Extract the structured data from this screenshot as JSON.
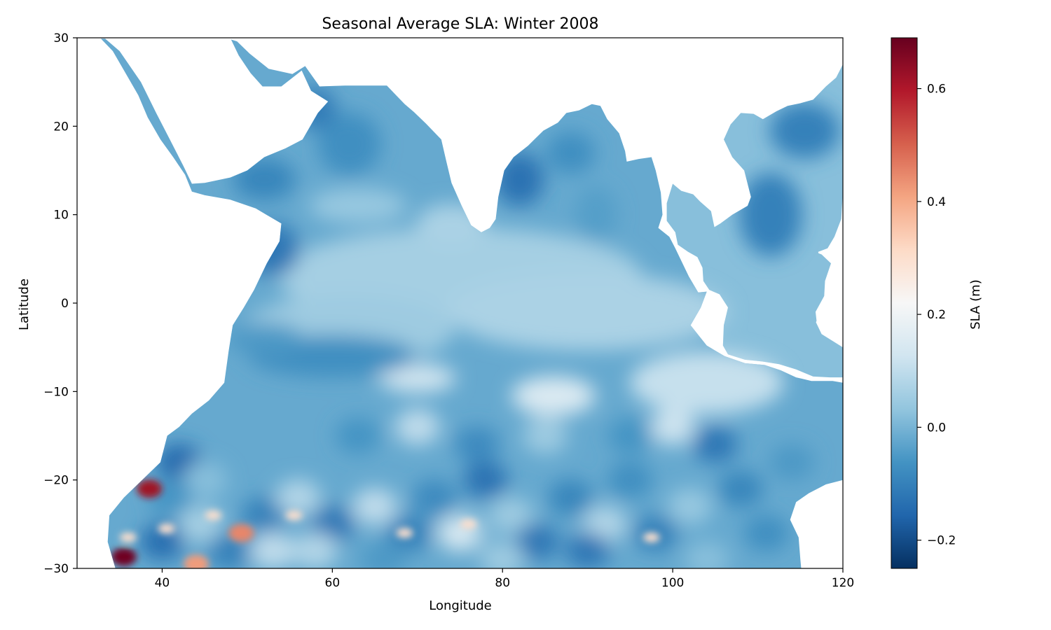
{
  "chart_data": {
    "type": "heatmap",
    "title": "Seasonal Average SLA: Winter 2008",
    "xlabel": "Longitude",
    "ylabel": "Latitude",
    "xlim": [
      30,
      120
    ],
    "ylim": [
      -30,
      30
    ],
    "xticks": [
      40,
      60,
      80,
      100,
      120
    ],
    "yticks": [
      -30,
      -20,
      -10,
      0,
      10,
      20,
      30
    ],
    "colorbar": {
      "label": "SLA (m)",
      "range": [
        -0.25,
        0.69
      ],
      "ticks": [
        -0.2,
        0.0,
        0.2,
        0.4,
        0.6
      ],
      "colormap": "RdBu_r",
      "colors": [
        "#053061",
        "#2166ac",
        "#4393c3",
        "#92c5de",
        "#d1e5f0",
        "#f7f7f7",
        "#fddbc7",
        "#f4a582",
        "#d6604d",
        "#b2182b",
        "#67001f"
      ]
    },
    "grid": false,
    "notes_visible": {
      "land_color": "#ffffff",
      "ocean_dominant_range_m": [
        -0.15,
        0.2
      ],
      "positive_eddies": [
        {
          "lon": 35.5,
          "lat": -28.7,
          "value": 0.68
        },
        {
          "lon": 38.5,
          "lat": -21.0,
          "value": 0.62
        },
        {
          "lon": 49.3,
          "lat": -26.0,
          "value": 0.45
        },
        {
          "lon": 44.0,
          "lat": -29.5,
          "value": 0.42
        }
      ]
    }
  }
}
